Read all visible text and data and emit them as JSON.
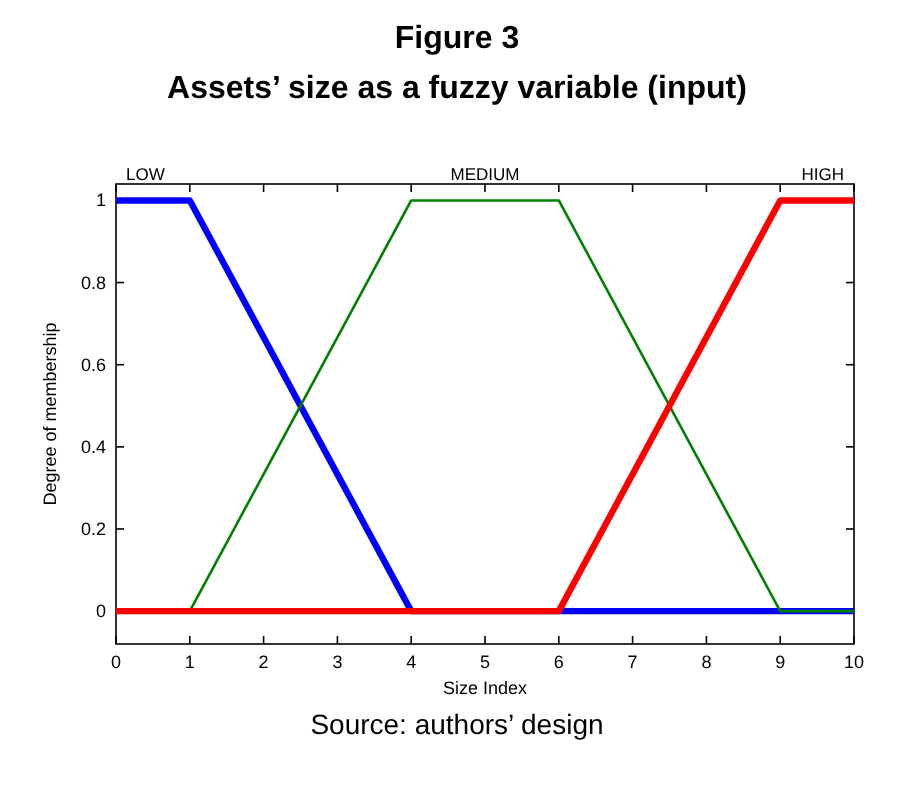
{
  "chart_data": {
    "type": "line",
    "title": "Figure 3",
    "subtitle": "Assets’ size as a fuzzy variable (input)",
    "xlabel": "Size Index",
    "ylabel": "Degree of membership",
    "series": [
      {
        "name": "LOW",
        "color": "#0000ff",
        "x": [
          0,
          1,
          4,
          10
        ],
        "values": [
          1,
          1,
          0,
          0
        ]
      },
      {
        "name": "MEDIUM",
        "color": "#008000",
        "x": [
          0,
          1,
          4,
          6,
          9,
          10
        ],
        "values": [
          0,
          0,
          1,
          1,
          0,
          0
        ]
      },
      {
        "name": "HIGH",
        "color": "#ff0000",
        "x": [
          0,
          6,
          9,
          10
        ],
        "values": [
          0,
          0,
          1,
          1
        ]
      }
    ],
    "xlim": [
      0,
      10
    ],
    "xticks": [
      0,
      1,
      2,
      3,
      4,
      5,
      6,
      7,
      8,
      9,
      10
    ],
    "ylim": [
      -0.08,
      1.04
    ],
    "yticks": [
      0,
      0.2,
      0.4,
      0.6,
      0.8,
      1
    ],
    "grid": false,
    "marker": "none",
    "line_style": "solid",
    "annotations": [
      "Source: authors’ design"
    ]
  }
}
